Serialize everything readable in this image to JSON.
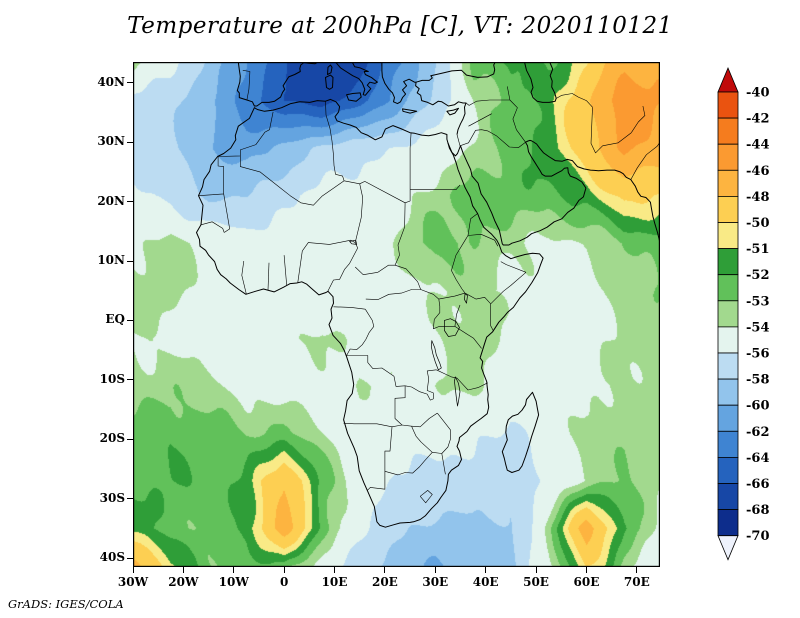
{
  "title": "Temperature at 200hPa [C], VT: 2020110121",
  "footer": "GrADS: IGES/COLA",
  "axes": {
    "lat_tick_labels": [
      "40N",
      "30N",
      "20N",
      "10N",
      "EQ",
      "10S",
      "20S",
      "30S",
      "40S"
    ],
    "lat_tick_values": [
      40,
      30,
      20,
      10,
      0,
      -10,
      -20,
      -30,
      -40
    ],
    "lon_tick_labels": [
      "30W",
      "20W",
      "10W",
      "0",
      "10E",
      "20E",
      "30E",
      "40E",
      "50E",
      "60E",
      "70E"
    ],
    "lon_tick_values": [
      -30,
      -20,
      -10,
      0,
      10,
      20,
      30,
      40,
      50,
      60,
      70
    ]
  },
  "colorbar": {
    "tick_labels": [
      "-40",
      "-42",
      "-44",
      "-46",
      "-48",
      "-50",
      "-51",
      "-52",
      "-53",
      "-54",
      "-56",
      "-58",
      "-60",
      "-62",
      "-64",
      "-66",
      "-68",
      "-70"
    ]
  },
  "chart_data": {
    "type": "heatmap",
    "title": "Temperature at 200hPa [C]",
    "valid_time": "2020110121",
    "units": "C",
    "level": "200hPa",
    "lon_range": [
      -30,
      74.6
    ],
    "lat_range": [
      -41.5,
      43.5
    ],
    "contour_levels": [
      -40,
      -42,
      -44,
      -46,
      -48,
      -50,
      -51,
      -52,
      -53,
      -54,
      -56,
      -58,
      -60,
      -62,
      -64,
      -66,
      -68,
      -70
    ],
    "palette": [
      "#c00a0a",
      "#ea5310",
      "#f57c1e",
      "#fb9a31",
      "#fdb440",
      "#fdcf52",
      "#f9ea86",
      "#2f9e38",
      "#61c15a",
      "#a2d98e",
      "#e4f4ee",
      "#bcdcf2",
      "#92c4ec",
      "#64a4e0",
      "#3f84d2",
      "#2563be",
      "#1747a6",
      "#0d2d8c",
      "#eef2fc"
    ],
    "grid": {
      "lons": [
        -30,
        -22.5,
        -15,
        -7.5,
        0,
        7.5,
        15,
        22.5,
        30,
        37.5,
        45,
        52.5,
        60,
        67.5,
        75
      ],
      "lats": [
        45,
        37,
        29,
        21,
        13,
        5,
        -3,
        -11,
        -19,
        -27,
        -35,
        -43
      ],
      "temps": [
        [
          -52.5,
          -55.0,
          -58.0,
          -62.0,
          -65.5,
          -67.5,
          -67.0,
          -63.0,
          -58.0,
          -52.5,
          -51.5,
          -52.5,
          -50.5,
          -47.0,
          -46.5
        ],
        [
          -56.5,
          -57.5,
          -59.5,
          -63.0,
          -66.0,
          -67.0,
          -65.0,
          -61.0,
          -57.5,
          -54.0,
          -52.5,
          -51.5,
          -48.5,
          -44.5,
          -46.0
        ],
        [
          -56.5,
          -57.5,
          -60.0,
          -61.0,
          -59.5,
          -57.5,
          -56.5,
          -56.0,
          -55.0,
          -54.0,
          -52.5,
          -51.5,
          -49.0,
          -45.5,
          -47.0
        ],
        [
          -55.5,
          -56.5,
          -58.5,
          -58.0,
          -56.5,
          -55.5,
          -55.0,
          -54.5,
          -53.5,
          -52.5,
          -52.3,
          -52.3,
          -51.5,
          -49.5,
          -50.0
        ],
        [
          -54.5,
          -53.4,
          -54.5,
          -55.0,
          -55.2,
          -55.0,
          -54.5,
          -53.8,
          -52.5,
          -53.0,
          -53.8,
          -54.3,
          -54.0,
          -53.0,
          -52.5
        ],
        [
          -53.2,
          -53.6,
          -54.5,
          -55.0,
          -55.0,
          -55.0,
          -54.8,
          -54.5,
          -54.0,
          -53.5,
          -54.3,
          -54.8,
          -54.5,
          -53.5,
          -53.0
        ],
        [
          -54.0,
          -54.5,
          -54.8,
          -55.0,
          -54.6,
          -53.6,
          -54.4,
          -54.8,
          -54.2,
          -53.2,
          -54.4,
          -54.8,
          -54.5,
          -53.6,
          -53.4
        ],
        [
          -53.6,
          -53.2,
          -53.6,
          -54.4,
          -54.8,
          -54.8,
          -53.8,
          -54.4,
          -54.0,
          -53.6,
          -54.8,
          -54.8,
          -54.4,
          -53.8,
          -53.5
        ],
        [
          -52.6,
          -52.2,
          -52.6,
          -53.0,
          -52.8,
          -53.8,
          -54.8,
          -55.4,
          -55.0,
          -55.6,
          -56.4,
          -55.2,
          -53.6,
          -53.2,
          -53.6
        ],
        [
          -52.2,
          -52.0,
          -52.4,
          -51.8,
          -48.0,
          -52.4,
          -54.8,
          -56.4,
          -56.6,
          -57.0,
          -57.6,
          -55.6,
          -53.8,
          -52.8,
          -53.8
        ],
        [
          -51.6,
          -52.4,
          -53.0,
          -51.6,
          -47.0,
          -52.2,
          -55.6,
          -57.6,
          -58.6,
          -58.2,
          -58.4,
          -53.5,
          -46.8,
          -52.0,
          -54.6
        ],
        [
          -45.5,
          -50.5,
          -52.5,
          -53.0,
          -53.5,
          -55.5,
          -57.5,
          -59.5,
          -60.5,
          -59.5,
          -58.5,
          -54.5,
          -50.5,
          -53.5,
          -56.0
        ]
      ]
    }
  }
}
